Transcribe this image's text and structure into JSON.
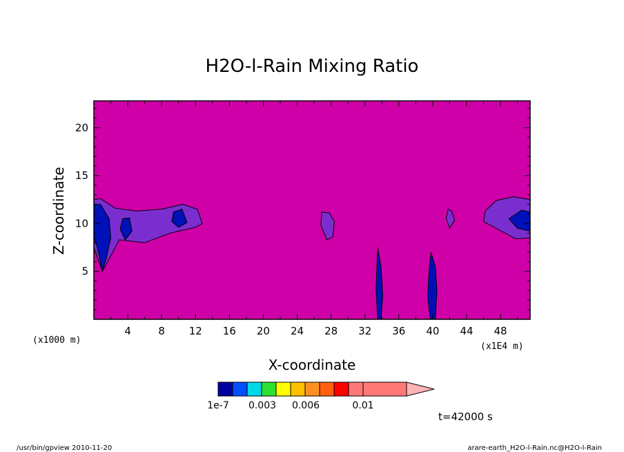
{
  "chart_data": {
    "type": "heatmap",
    "title": "H2O-l-Rain Mixing Ratio",
    "xlabel": "X-coordinate",
    "ylabel": "Z-coordinate",
    "x_scale_label": "(x1E4 m)",
    "y_scale_label": "(x1000 m)",
    "xlim": [
      0,
      51.5
    ],
    "ylim": [
      0,
      22.8
    ],
    "x_ticks": [
      "4",
      "8",
      "12",
      "16",
      "20",
      "24",
      "28",
      "32",
      "36",
      "40",
      "44",
      "48"
    ],
    "y_ticks": [
      "5",
      "10",
      "15",
      "20"
    ],
    "x_tick_values": [
      4,
      8,
      12,
      16,
      20,
      24,
      28,
      32,
      36,
      40,
      44,
      48
    ],
    "y_tick_values": [
      5,
      10,
      15,
      20
    ],
    "background_color": "#d000a8",
    "regions": [
      {
        "name": "left-cloud-outer",
        "level": "1e-7",
        "color": "#7a2ed0",
        "x": [
          0,
          0.8,
          2.5,
          5,
          8,
          10.5,
          12.2,
          12.8,
          12,
          9,
          6,
          3,
          1,
          0
        ],
        "z": [
          12.5,
          12.6,
          11.6,
          11.3,
          11.5,
          12.0,
          11.5,
          10.0,
          9.6,
          9.0,
          8.0,
          8.3,
          5.0,
          7.5
        ]
      },
      {
        "name": "left-cloud-inner",
        "level": "0.001",
        "color": "#0010b8",
        "x": [
          0,
          0.8,
          1.8,
          2.0,
          1.5,
          1.0,
          0.4,
          0
        ],
        "z": [
          12.0,
          12.0,
          10.5,
          8.5,
          6.5,
          5.0,
          7.5,
          8.5
        ]
      },
      {
        "name": "left-cloud-inner-2",
        "level": "0.001",
        "color": "#0010b8",
        "x": [
          3.4,
          4.2,
          4.5,
          3.7,
          3.1
        ],
        "z": [
          10.5,
          10.6,
          9.2,
          8.3,
          9.4
        ]
      },
      {
        "name": "left-cloud-inner-3",
        "level": "0.001",
        "color": "#0010b8",
        "x": [
          9.4,
          10.4,
          11.0,
          10.0,
          9.2
        ],
        "z": [
          11.2,
          11.5,
          10.1,
          9.6,
          10.2
        ]
      },
      {
        "name": "mid-cloud",
        "level": "1e-7",
        "color": "#7a2ed0",
        "x": [
          26.9,
          27.8,
          28.4,
          28.2,
          27.5,
          26.8
        ],
        "z": [
          11.2,
          11.1,
          10.2,
          8.6,
          8.3,
          9.8
        ]
      },
      {
        "name": "small-cloud",
        "level": "1e-7",
        "color": "#7a2ed0",
        "x": [
          41.8,
          42.2,
          42.6,
          42.0,
          41.6
        ],
        "z": [
          11.5,
          11.3,
          10.4,
          9.5,
          10.5
        ]
      },
      {
        "name": "right-cloud-outer",
        "level": "1e-7",
        "color": "#7a2ed0",
        "x": [
          46.2,
          47.5,
          49.5,
          51.5,
          51.5,
          49.8,
          47.5,
          46.0
        ],
        "z": [
          11.3,
          12.4,
          12.8,
          12.5,
          8.5,
          8.4,
          9.5,
          10.2
        ]
      },
      {
        "name": "right-cloud-inner",
        "level": "0.001",
        "color": "#0010b8",
        "x": [
          49.0,
          50.5,
          51.5,
          51.5,
          50.0
        ],
        "z": [
          10.5,
          11.4,
          11.2,
          9.2,
          9.5
        ]
      },
      {
        "name": "column-1",
        "level": "0.001",
        "color": "#0010b8",
        "x": [
          33.5,
          33.9,
          34.1,
          33.9,
          33.5,
          33.3
        ],
        "z": [
          7.5,
          5.5,
          2.5,
          0,
          0,
          3.0
        ]
      },
      {
        "name": "column-2",
        "level": "0.001",
        "color": "#0010b8",
        "x": [
          39.8,
          40.3,
          40.5,
          40.3,
          39.7,
          39.4,
          39.6
        ],
        "z": [
          7.0,
          5.5,
          3.0,
          0,
          0,
          2.5,
          5.5
        ]
      }
    ]
  },
  "colorbar": {
    "colors": [
      "#0000a0",
      "#0050ff",
      "#00d8e8",
      "#30e030",
      "#ffff00",
      "#ffc000",
      "#ff9020",
      "#ff6010",
      "#ff0000",
      "#ff7878",
      "#ffb4b4"
    ],
    "labels": [
      "1e-7",
      "0.003",
      "0.006",
      "0.01"
    ]
  },
  "time_label": "t=42000 s",
  "footer": {
    "left": "/usr/bin/gpview  2010-11-20",
    "right": "arare-earth_H2O-l-Rain.nc@H2O-l-Rain"
  }
}
